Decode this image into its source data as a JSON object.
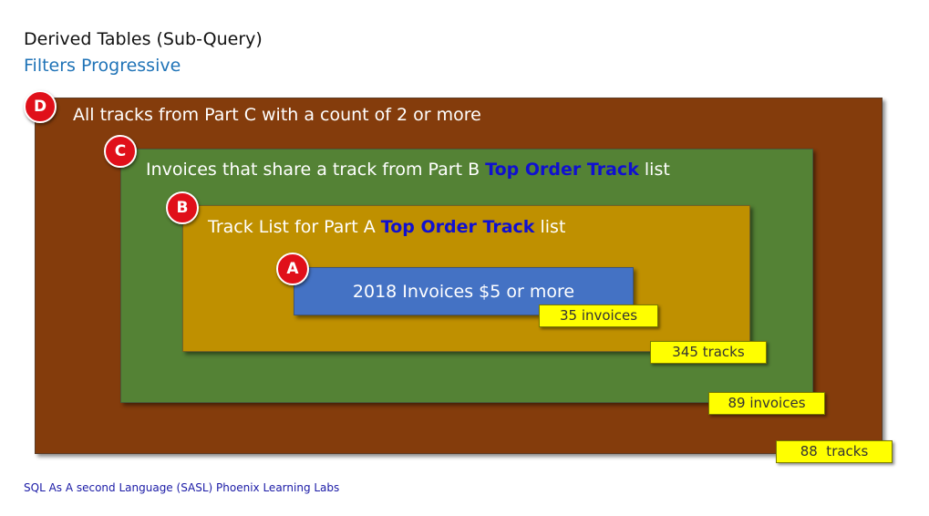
{
  "header": {
    "title": "Derived Tables (Sub-Query)",
    "subtitle": "Filters Progressive"
  },
  "levels": {
    "d": {
      "badge": "D",
      "text": "All tracks from Part C with a count of 2 or more",
      "count": "88  tracks",
      "color": "#843c0c"
    },
    "c": {
      "badge": "C",
      "text_before": "Invoices that share a track from Part B",
      "highlight": "Top Order Track",
      "text_after": "list",
      "count": "89 invoices",
      "color": "#548235"
    },
    "b": {
      "badge": "B",
      "text_before": "Track List for Part A",
      "highlight": "Top Order Track",
      "text_after": "list",
      "count": "345 tracks",
      "color": "#bf9000"
    },
    "a": {
      "badge": "A",
      "text": "2018 Invoices $5 or more",
      "count": "35 invoices",
      "color": "#4472c4"
    }
  },
  "footer": "SQL As A second Language (SASL) Phoenix Learning Labs",
  "colors": {
    "badge": "#e0101a",
    "highlight": "#1010d0",
    "count_note": "#ffff00",
    "subtitle": "#1f73b7"
  }
}
